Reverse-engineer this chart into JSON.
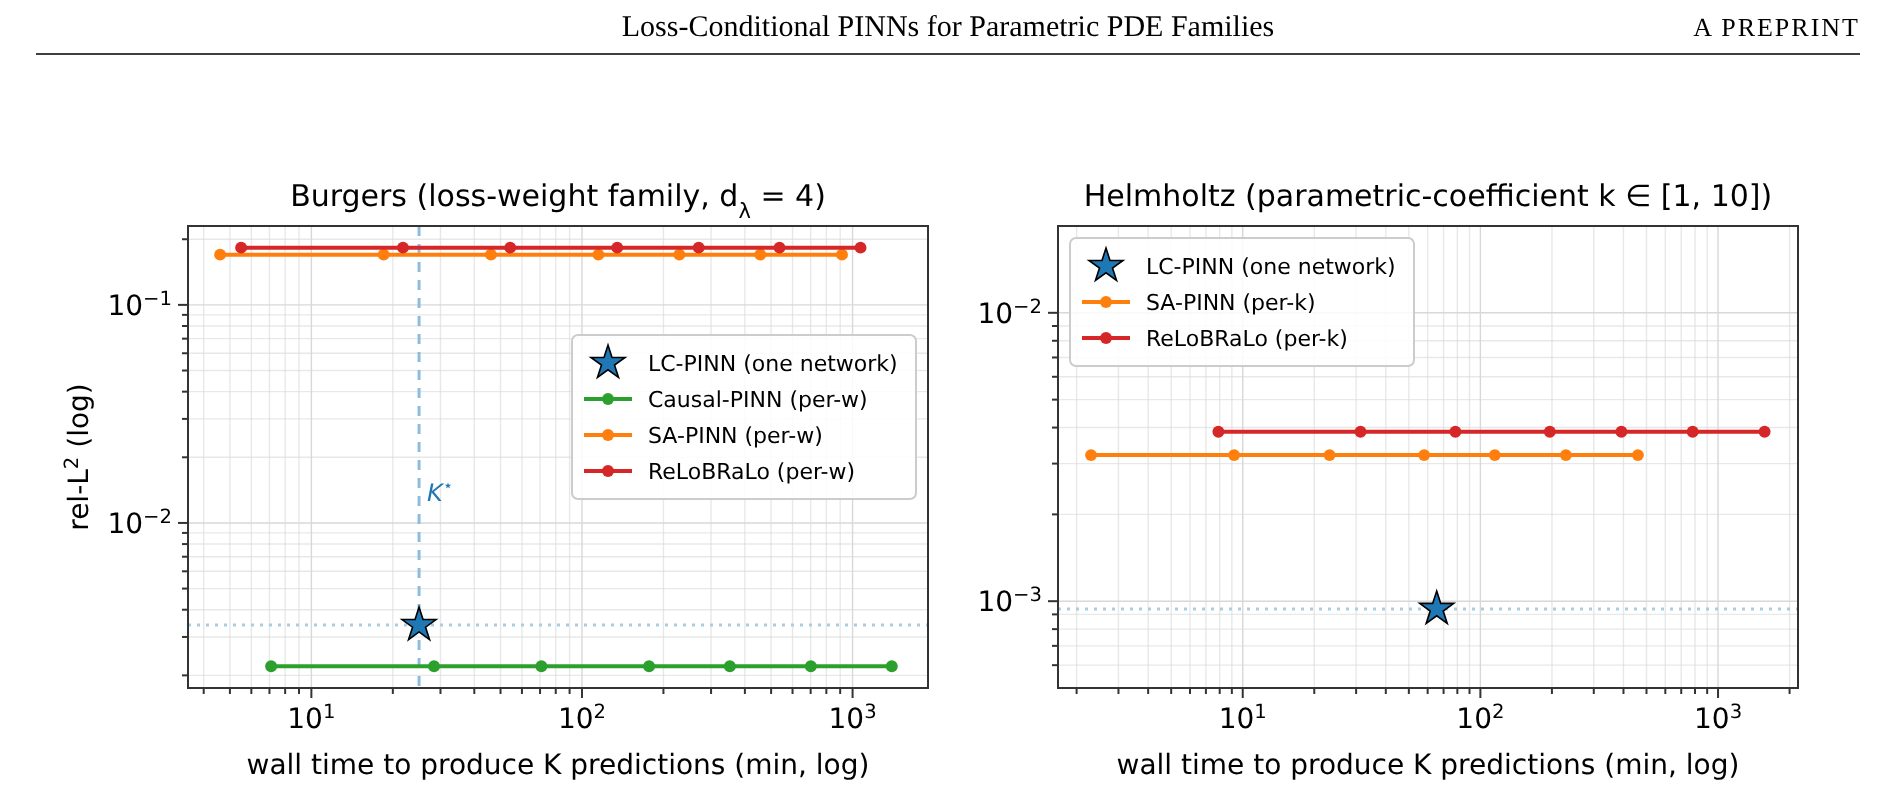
{
  "chart_data": [
    {
      "type": "line",
      "title": "Burgers (loss-weight family, d$_{λ}$ = 4)",
      "xlabel": "wall time to produce K predictions (min, log)",
      "ylabel": "rel-L$^{2}$ (log)",
      "log": "xy",
      "grid": true,
      "legend": "right",
      "annotations": [
        "Loss-Conditional PINNs for Parametric PDE Families",
        "A PREPRINT"
      ],
      "xlim": [
        3.5,
        1900
      ],
      "ylim": [
        0.00175,
        0.23
      ],
      "xticks": [
        {
          "value": 4,
          "label": null
        },
        {
          "value": 5,
          "label": null
        },
        {
          "value": 6,
          "label": null
        },
        {
          "value": 7,
          "label": null
        },
        {
          "value": 8,
          "label": null
        },
        {
          "value": 9,
          "label": null
        },
        {
          "value": 10,
          "label": "10$^{1}$"
        },
        {
          "value": 20,
          "label": null
        },
        {
          "value": 30,
          "label": null
        },
        {
          "value": 40,
          "label": null
        },
        {
          "value": 50,
          "label": null
        },
        {
          "value": 60,
          "label": null
        },
        {
          "value": 70,
          "label": null
        },
        {
          "value": 80,
          "label": null
        },
        {
          "value": 90,
          "label": null
        },
        {
          "value": 100,
          "label": "10$^{2}$"
        },
        {
          "value": 200,
          "label": null
        },
        {
          "value": 300,
          "label": null
        },
        {
          "value": 400,
          "label": null
        },
        {
          "value": 500,
          "label": null
        },
        {
          "value": 600,
          "label": null
        },
        {
          "value": 700,
          "label": null
        },
        {
          "value": 800,
          "label": null
        },
        {
          "value": 900,
          "label": null
        },
        {
          "value": 1000,
          "label": "10$^{3}$"
        }
      ],
      "yticks": [
        {
          "value": 0.002,
          "label": null
        },
        {
          "value": 0.003,
          "label": null
        },
        {
          "value": 0.004,
          "label": null
        },
        {
          "value": 0.005,
          "label": null
        },
        {
          "value": 0.006,
          "label": null
        },
        {
          "value": 0.007,
          "label": null
        },
        {
          "value": 0.008,
          "label": null
        },
        {
          "value": 0.009,
          "label": null
        },
        {
          "value": 0.01,
          "label": "10$^{−2}$"
        },
        {
          "value": 0.02,
          "label": null
        },
        {
          "value": 0.03,
          "label": null
        },
        {
          "value": 0.04,
          "label": null
        },
        {
          "value": 0.05,
          "label": null
        },
        {
          "value": 0.06,
          "label": null
        },
        {
          "value": 0.07,
          "label": null
        },
        {
          "value": 0.08,
          "label": null
        },
        {
          "value": 0.09,
          "label": null
        },
        {
          "value": 0.1,
          "label": "10$^{−1}$"
        },
        {
          "value": 0.2,
          "label": null
        }
      ],
      "ref_lines": [
        {
          "axis": "x",
          "value": 25,
          "label": "K$^{⋆}$",
          "color": "#8fbcdc",
          "line_style": "dashed"
        },
        {
          "axis": "y",
          "value": 0.0034,
          "color": "#a9cde6",
          "line_style": "dotted"
        }
      ],
      "series": [
        {
          "name": "LC-PINN (one network)",
          "type": "scatter",
          "marker": "star",
          "color": "#1f77b4",
          "x": [
            25
          ],
          "values": [
            0.0034
          ]
        },
        {
          "name": "Causal-PINN (per-w)",
          "marker": "circle",
          "color": "#2ca02c",
          "x": [
            7.1,
            28.4,
            70.8,
            177,
            352,
            701,
            1396
          ],
          "values": [
            0.0022,
            0.0022,
            0.0022,
            0.0022,
            0.0022,
            0.0022,
            0.0022
          ]
        },
        {
          "name": "SA-PINN (per-w)",
          "marker": "circle",
          "color": "#ff7f0e",
          "x": [
            4.6,
            18.5,
            46.1,
            115,
            229,
            456,
            914
          ],
          "values": [
            0.17,
            0.17,
            0.17,
            0.17,
            0.17,
            0.17,
            0.17
          ]
        },
        {
          "name": "ReLoBRaLo (per-w)",
          "marker": "circle",
          "color": "#d62728",
          "x": [
            5.5,
            21.8,
            54.3,
            135,
            270,
            537,
            1070
          ],
          "values": [
            0.183,
            0.183,
            0.183,
            0.183,
            0.183,
            0.183,
            0.183
          ]
        }
      ]
    },
    {
      "type": "line",
      "title": "Helmholtz (parametric-coefficient k ∈ [1, 10])",
      "xlabel": "wall time to produce K predictions (min, log)",
      "log": "xy",
      "grid": true,
      "legend": "top left",
      "xlim": [
        1.67,
        2170
      ],
      "ylim": [
        0.0005,
        0.02
      ],
      "xticks": [
        {
          "value": 2,
          "label": null
        },
        {
          "value": 3,
          "label": null
        },
        {
          "value": 4,
          "label": null
        },
        {
          "value": 5,
          "label": null
        },
        {
          "value": 6,
          "label": null
        },
        {
          "value": 7,
          "label": null
        },
        {
          "value": 8,
          "label": null
        },
        {
          "value": 9,
          "label": null
        },
        {
          "value": 10,
          "label": "10$^{1}$"
        },
        {
          "value": 20,
          "label": null
        },
        {
          "value": 30,
          "label": null
        },
        {
          "value": 40,
          "label": null
        },
        {
          "value": 50,
          "label": null
        },
        {
          "value": 60,
          "label": null
        },
        {
          "value": 70,
          "label": null
        },
        {
          "value": 80,
          "label": null
        },
        {
          "value": 90,
          "label": null
        },
        {
          "value": 100,
          "label": "10$^{2}$"
        },
        {
          "value": 200,
          "label": null
        },
        {
          "value": 300,
          "label": null
        },
        {
          "value": 400,
          "label": null
        },
        {
          "value": 500,
          "label": null
        },
        {
          "value": 600,
          "label": null
        },
        {
          "value": 700,
          "label": null
        },
        {
          "value": 800,
          "label": null
        },
        {
          "value": 900,
          "label": null
        },
        {
          "value": 1000,
          "label": "10$^{3}$"
        },
        {
          "value": 2000,
          "label": null
        }
      ],
      "yticks": [
        {
          "value": 0.0006,
          "label": null
        },
        {
          "value": 0.0007,
          "label": null
        },
        {
          "value": 0.0008,
          "label": null
        },
        {
          "value": 0.0009,
          "label": null
        },
        {
          "value": 0.001,
          "label": "10$^{−3}$"
        },
        {
          "value": 0.002,
          "label": null
        },
        {
          "value": 0.003,
          "label": null
        },
        {
          "value": 0.004,
          "label": null
        },
        {
          "value": 0.005,
          "label": null
        },
        {
          "value": 0.006,
          "label": null
        },
        {
          "value": 0.007,
          "label": null
        },
        {
          "value": 0.008,
          "label": null
        },
        {
          "value": 0.009,
          "label": null
        },
        {
          "value": 0.01,
          "label": "10$^{−2}$"
        }
      ],
      "ref_lines": [
        {
          "axis": "y",
          "value": 0.00094,
          "color": "#a9cde6",
          "line_style": "dotted"
        }
      ],
      "series": [
        {
          "name": "LC-PINN (one network)",
          "type": "scatter",
          "marker": "star",
          "color": "#1f77b4",
          "x": [
            65.5
          ],
          "values": [
            0.00094
          ]
        },
        {
          "name": "SA-PINN (per-k)",
          "marker": "circle",
          "color": "#ff7f0e",
          "x": [
            2.3,
            9.2,
            23.2,
            58.0,
            115,
            229,
            460
          ],
          "values": [
            0.00321,
            0.00321,
            0.00321,
            0.00321,
            0.00321,
            0.00321,
            0.00321
          ]
        },
        {
          "name": "ReLoBRaLo (per-k)",
          "marker": "circle",
          "color": "#d62728",
          "x": [
            7.9,
            31.3,
            78.5,
            196,
            392,
            782,
            1570
          ],
          "values": [
            0.00387,
            0.00387,
            0.00387,
            0.00387,
            0.00387,
            0.00387,
            0.00387
          ]
        }
      ]
    }
  ]
}
